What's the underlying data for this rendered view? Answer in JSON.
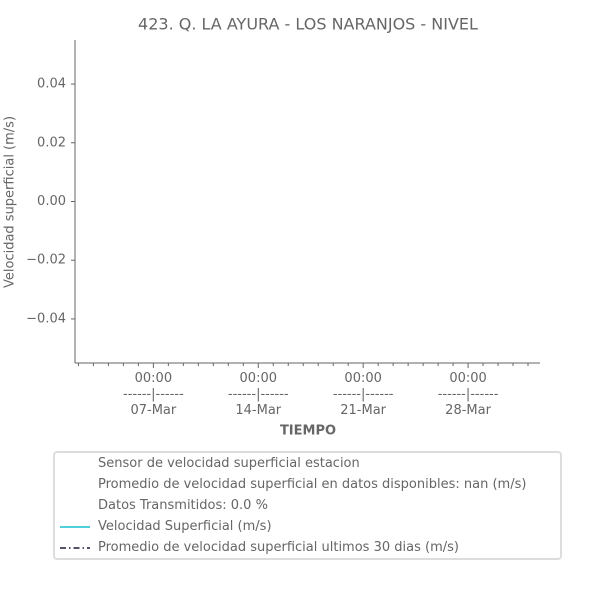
{
  "chart_data": {
    "type": "line",
    "title": "423. Q. LA AYURA - LOS NARANJOS -  NIVEL",
    "y_label": "Velocidad superficial (m/s)",
    "x_label": "TIEMPO",
    "x": [],
    "series": [
      {
        "name": "Velocidad Superficial (m/s)",
        "color": "#17becf",
        "linestyle": "solid",
        "values": []
      },
      {
        "name": "Promedio de velocidad superficial ultimos 30 dias (m/s)",
        "color": "#1a1a3a",
        "linestyle": "dashdot",
        "values": []
      }
    ],
    "legend_notes": [
      "Sensor de velocidad superficial estacion",
      "Promedio de velocidad superficial en datos disponibles: nan (m/s)",
      "Datos Transmitidos: 0.0 %"
    ],
    "ylim": [
      -0.055,
      0.055
    ],
    "yticks": [
      {
        "value": 0.04,
        "label": "0.04"
      },
      {
        "value": 0.02,
        "label": "0.02"
      },
      {
        "value": 0,
        "label": "0.00"
      },
      {
        "value": -0.02,
        "label": "−0.02"
      },
      {
        "value": -0.04,
        "label": "−0.04"
      }
    ],
    "xlim": [
      1.77,
      32.8
    ],
    "xticks": [
      {
        "value": 7,
        "label": "00:00\n------|------\n07-Mar"
      },
      {
        "value": 14,
        "label": "00:00\n------|------\n14-Mar"
      },
      {
        "value": 21,
        "label": "00:00\n------|------\n21-Mar"
      },
      {
        "value": 28,
        "label": "00:00\n------|------\n28-Mar"
      }
    ],
    "xminorticks": [
      2,
      3,
      4,
      5,
      6,
      8,
      9,
      10,
      11,
      12,
      13,
      15,
      16,
      17,
      18,
      19,
      20,
      22,
      23,
      24,
      25,
      26,
      27,
      29,
      30,
      31,
      32
    ],
    "legend_position": "bottom"
  }
}
